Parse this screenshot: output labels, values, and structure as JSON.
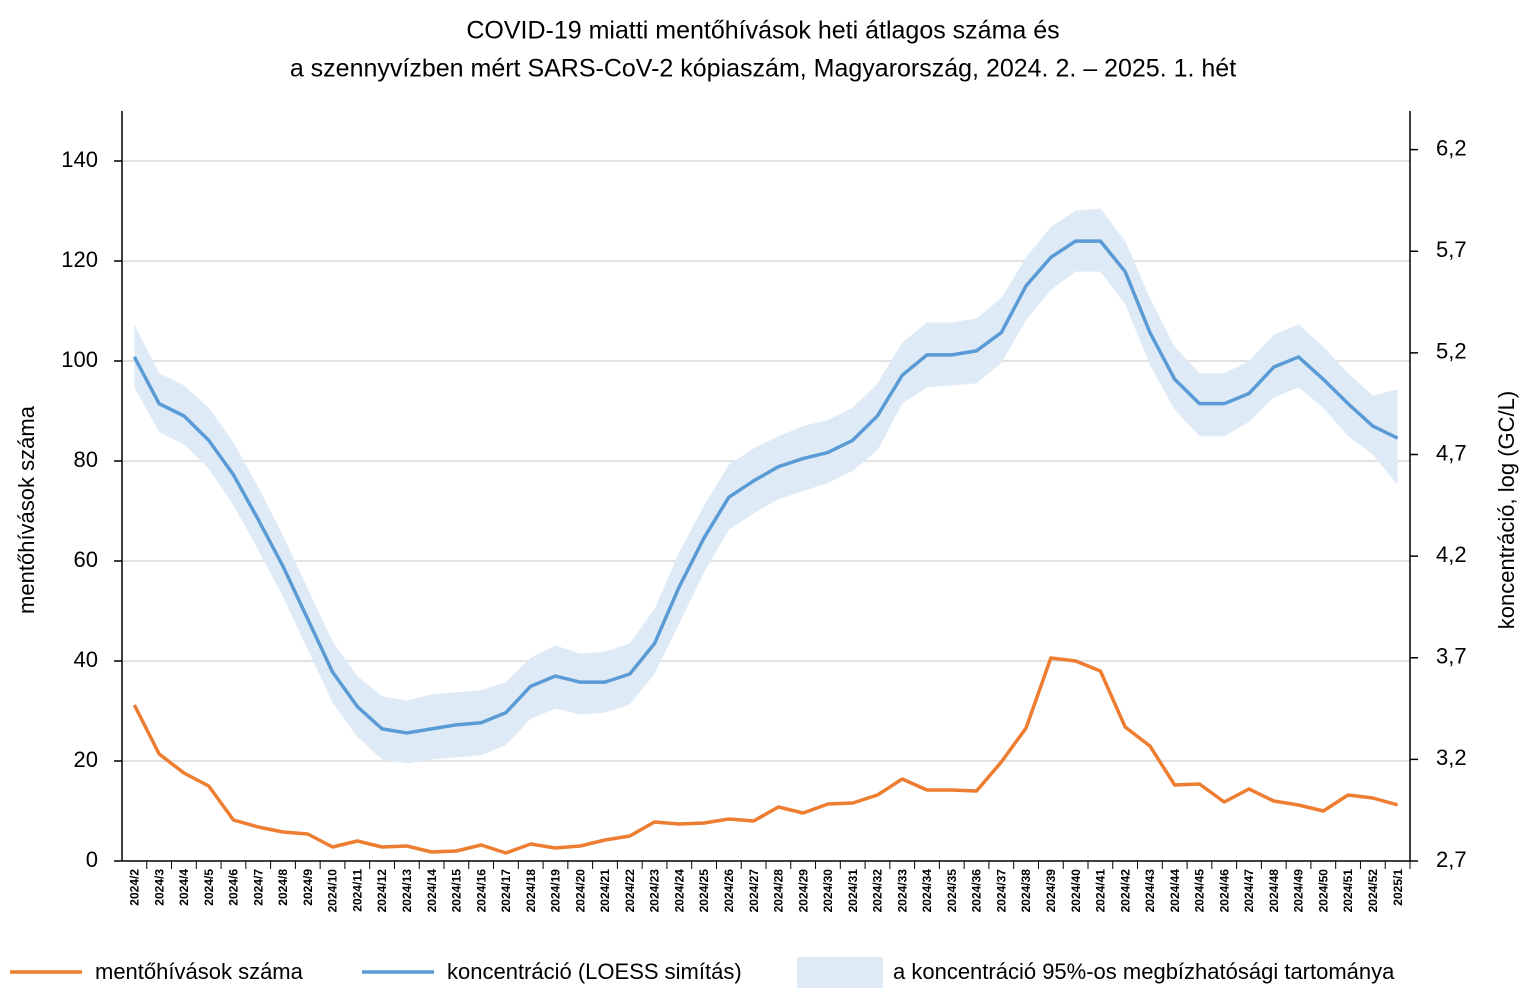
{
  "chart_data": {
    "type": "line",
    "title": [
      "COVID-19 miatti mentőhívások heti átlagos száma és",
      "a szennyvízben mért SARS-CoV-2 kópiaszám, Magyarország, 2024. 2. – 2025. 1. hét"
    ],
    "y_label": "mentőhívások száma",
    "y2_label": "koncentráció, log (GC/L)",
    "categories": [
      "2024/2",
      "2024/3",
      "2024/4",
      "2024/5",
      "2024/6",
      "2024/7",
      "2024/8",
      "2024/9",
      "2024/10",
      "2024/11",
      "2024/12",
      "2024/13",
      "2024/14",
      "2024/15",
      "2024/16",
      "2024/17",
      "2024/18",
      "2024/19",
      "2024/20",
      "2024/21",
      "2024/22",
      "2024/23",
      "2024/24",
      "2024/25",
      "2024/26",
      "2024/27",
      "2024/28",
      "2024/29",
      "2024/30",
      "2024/31",
      "2024/32",
      "2024/33",
      "2024/34",
      "2024/35",
      "2024/36",
      "2024/37",
      "2024/38",
      "2024/39",
      "2024/40",
      "2024/41",
      "2024/42",
      "2024/43",
      "2024/44",
      "2024/45",
      "2024/46",
      "2024/47",
      "2024/48",
      "2024/49",
      "2024/50",
      "2024/51",
      "2024/52",
      "2025/1"
    ],
    "ylim": [
      0,
      150
    ],
    "yticks": [
      0,
      20,
      40,
      60,
      80,
      100,
      120,
      140
    ],
    "y2lim": [
      2.7,
      6.39
    ],
    "y2ticks": [
      {
        "value": 2.7,
        "label": "2,7"
      },
      {
        "value": 3.2,
        "label": "3,2"
      },
      {
        "value": 3.7,
        "label": "3,7"
      },
      {
        "value": 4.2,
        "label": "4,2"
      },
      {
        "value": 4.7,
        "label": "4,7"
      },
      {
        "value": 5.2,
        "label": "5,2"
      },
      {
        "value": 5.7,
        "label": "5,7"
      },
      {
        "value": 6.2,
        "label": "6,2"
      }
    ],
    "grid": true,
    "legend": "bottom",
    "series": [
      {
        "name": "mentőhívások száma",
        "color": "#ed7d31",
        "values": [
          31.2,
          21.4,
          17.6,
          15,
          8.2,
          6.8,
          5.8,
          5.4,
          2.8,
          4,
          2.8,
          3,
          1.8,
          2,
          3.2,
          1.6,
          3.4,
          2.6,
          3,
          4.2,
          5,
          7.8,
          7.4,
          7.6,
          8.4,
          8,
          10.8,
          9.6,
          11.4,
          11.6,
          13.2,
          16.4,
          14.2,
          14.2,
          14,
          19.8,
          26.6,
          40.6,
          40,
          38,
          26.8,
          23,
          15.2,
          15.4,
          11.8,
          14.4,
          12,
          11.2,
          10,
          13.2,
          12.6,
          11.2
        ]
      },
      {
        "name": "koncentráció (LOESS simítás)",
        "color": "#5b9bd5",
        "axis": "y2",
        "values": [
          5.18,
          4.95,
          4.89,
          4.77,
          4.6,
          4.38,
          4.15,
          3.89,
          3.63,
          3.46,
          3.35,
          3.33,
          3.35,
          3.37,
          3.38,
          3.43,
          3.56,
          3.61,
          3.58,
          3.58,
          3.62,
          3.77,
          4.05,
          4.29,
          4.49,
          4.57,
          4.64,
          4.68,
          4.71,
          4.77,
          4.89,
          5.09,
          5.19,
          5.19,
          5.21,
          5.3,
          5.53,
          5.67,
          5.75,
          5.75,
          5.6,
          5.3,
          5.07,
          4.95,
          4.95,
          5,
          5.13,
          5.18,
          5.07,
          4.95,
          4.84,
          4.78
        ]
      },
      {
        "name": "a koncentráció 95%-os megbízhatósági tartománya",
        "color": "#deebf7",
        "axis": "y2",
        "type": "band",
        "upper": [
          5.34,
          5.1,
          5.04,
          4.93,
          4.76,
          4.54,
          4.3,
          4.04,
          3.78,
          3.61,
          3.51,
          3.49,
          3.52,
          3.53,
          3.54,
          3.58,
          3.7,
          3.76,
          3.72,
          3.73,
          3.77,
          3.94,
          4.22,
          4.45,
          4.65,
          4.73,
          4.79,
          4.84,
          4.87,
          4.93,
          5.05,
          5.25,
          5.35,
          5.35,
          5.37,
          5.47,
          5.67,
          5.82,
          5.9,
          5.91,
          5.75,
          5.47,
          5.23,
          5.1,
          5.1,
          5.16,
          5.29,
          5.34,
          5.23,
          5.1,
          4.99,
          5.02
        ],
        "lower": [
          5.03,
          4.81,
          4.75,
          4.63,
          4.45,
          4.23,
          4,
          3.74,
          3.48,
          3.31,
          3.2,
          3.18,
          3.2,
          3.21,
          3.22,
          3.27,
          3.4,
          3.45,
          3.42,
          3.43,
          3.47,
          3.62,
          3.87,
          4.12,
          4.33,
          4.41,
          4.48,
          4.52,
          4.56,
          4.62,
          4.72,
          4.95,
          5.03,
          5.04,
          5.05,
          5.15,
          5.36,
          5.51,
          5.6,
          5.6,
          5.44,
          5.14,
          4.92,
          4.79,
          4.79,
          4.86,
          4.98,
          5.03,
          4.93,
          4.79,
          4.7,
          4.55
        ]
      }
    ]
  }
}
